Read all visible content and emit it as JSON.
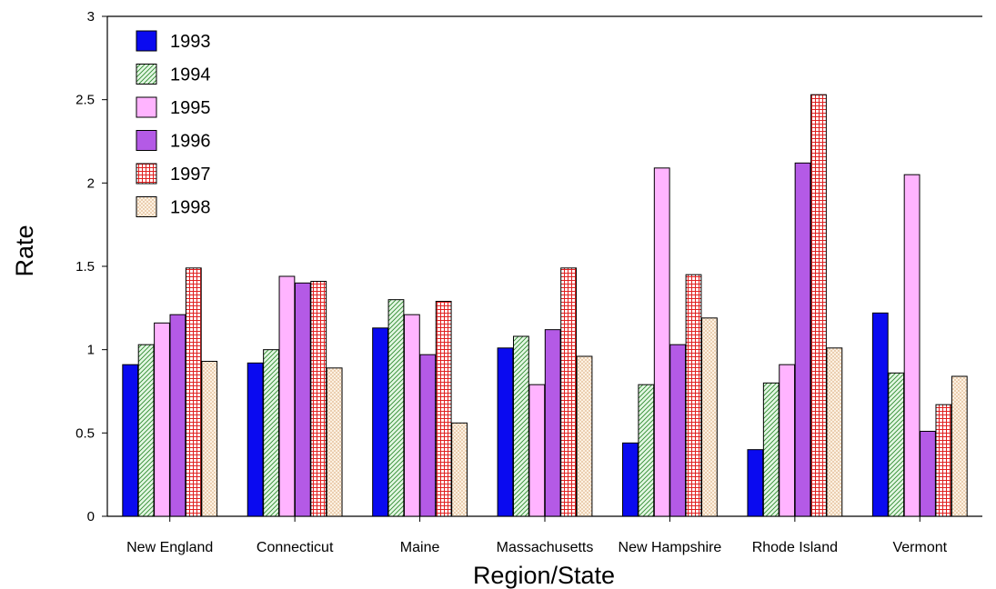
{
  "chart_data": {
    "type": "bar",
    "title": "",
    "xlabel": "Region/State",
    "ylabel": "Rate",
    "ylim": [
      0,
      3
    ],
    "yticks": [
      "0",
      "0.5",
      "1",
      "1.5",
      "2",
      "2.5",
      "3"
    ],
    "categories": [
      "New England",
      "Connecticut",
      "Maine",
      "Massachusetts",
      "New Hampshire",
      "Rhode Island",
      "Vermont"
    ],
    "legend_position": "top-left",
    "grid": false,
    "series": [
      {
        "name": "1993",
        "color": "#0a0af0",
        "pattern": "solid",
        "values": [
          0.91,
          0.92,
          1.13,
          1.01,
          0.44,
          0.4,
          1.22
        ]
      },
      {
        "name": "1994",
        "color": "#c8f0c8",
        "pattern": "hatch",
        "values": [
          1.03,
          1.0,
          1.3,
          1.08,
          0.79,
          0.8,
          0.86
        ]
      },
      {
        "name": "1995",
        "color": "#ffb4ff",
        "pattern": "solid",
        "values": [
          1.16,
          1.44,
          1.21,
          0.79,
          2.09,
          0.91,
          2.05
        ]
      },
      {
        "name": "1996",
        "color": "#b45ae6",
        "pattern": "solid",
        "values": [
          1.21,
          1.4,
          0.97,
          1.12,
          1.03,
          2.12,
          0.51
        ]
      },
      {
        "name": "1997",
        "color": "#ffdcdc",
        "pattern": "grid",
        "values": [
          1.49,
          1.41,
          1.29,
          1.49,
          1.45,
          2.53,
          0.67
        ]
      },
      {
        "name": "1998",
        "color": "#fff0e0",
        "pattern": "crosshatch",
        "values": [
          0.93,
          0.89,
          0.56,
          0.96,
          1.19,
          1.01,
          0.84
        ]
      }
    ]
  }
}
